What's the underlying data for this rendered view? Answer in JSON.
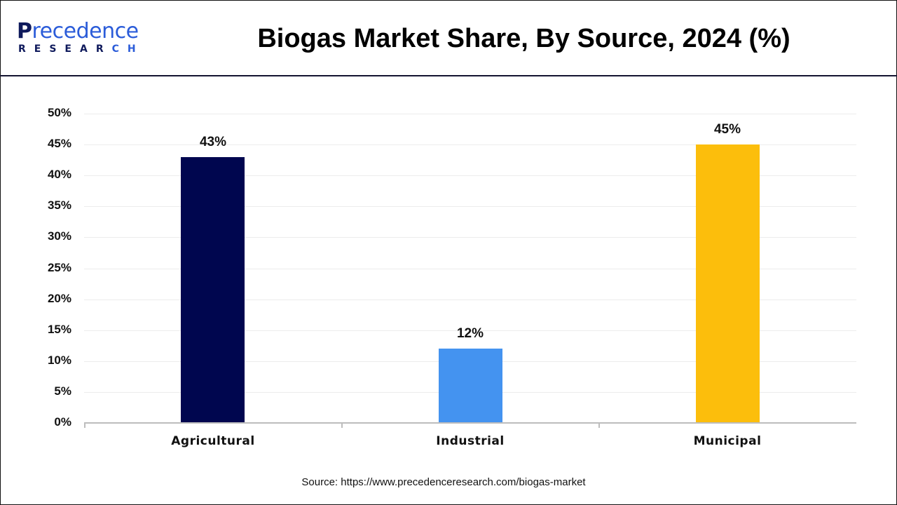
{
  "header": {
    "logo": {
      "line1": "recedence",
      "line1_initial": "P",
      "line2": "RESEAR",
      "line2_tail": "CH"
    },
    "title": "Biogas Market Share, By Source, 2024 (%)"
  },
  "colors": {
    "agricultural": "#00064f",
    "industrial": "#4493f0",
    "municipal": "#fcbe0c",
    "logo_dark": "#0f1a5c",
    "logo_blue": "#2b5cd9"
  },
  "source": "Source: https://www.precedenceresearch.com/biogas-market",
  "chart_data": {
    "type": "bar",
    "title": "Biogas Market Share, By Source, 2024 (%)",
    "categories": [
      "Agricultural",
      "Industrial",
      "Municipal"
    ],
    "values": [
      43,
      12,
      45
    ],
    "value_labels": [
      "43%",
      "12%",
      "45%"
    ],
    "xlabel": "",
    "ylabel": "",
    "ylim": [
      0,
      50
    ],
    "yticks": [
      "0%",
      "5%",
      "10%",
      "15%",
      "20%",
      "25%",
      "30%",
      "35%",
      "40%",
      "45%",
      "50%"
    ],
    "grid": true,
    "legend": "none",
    "bar_colors": [
      "#00064f",
      "#4493f0",
      "#fcbe0c"
    ]
  }
}
